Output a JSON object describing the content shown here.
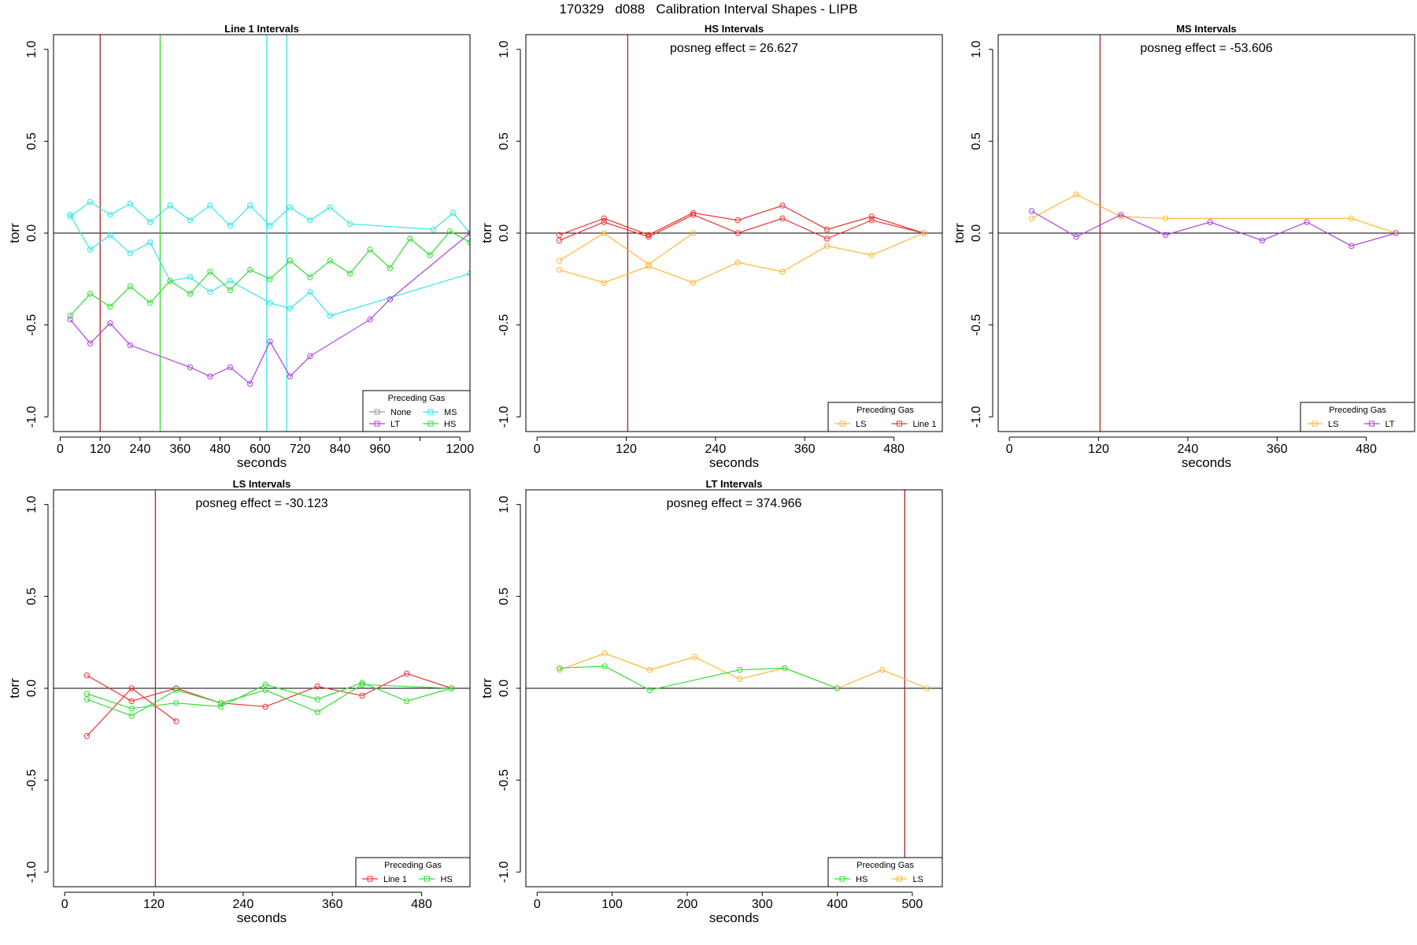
{
  "page_title": "170329   d088   Calibration Interval Shapes - LIPB",
  "chart_data": [
    {
      "id": "line1",
      "type": "line",
      "title": "Line 1 Intervals",
      "xlabel": "seconds",
      "ylabel": "torr",
      "xlim": [
        -20,
        1230
      ],
      "ylim": [
        -1.08,
        1.08
      ],
      "xticks": [
        0,
        120,
        240,
        360,
        480,
        600,
        720,
        840,
        960,
        1080,
        1200
      ],
      "xtick_labels": [
        "0",
        "120",
        "240",
        "360",
        "480",
        "600",
        "720",
        "840",
        "960",
        "",
        "1200"
      ],
      "yticks": [
        -1.0,
        -0.5,
        0.0,
        0.5,
        1.0
      ],
      "ytick_labels": [
        "-1.0",
        "-0.5",
        "0.0",
        "0.5",
        "1.0"
      ],
      "annotation": "",
      "vlines": [
        {
          "x": 120,
          "color": "#b22222"
        },
        {
          "x": 300,
          "color": "#33dd33"
        },
        {
          "x": 620,
          "color": "#33e6e6"
        },
        {
          "x": 680,
          "color": "#33e6e6"
        }
      ],
      "legend": {
        "title": "Preceding Gas",
        "position": "bottom-right",
        "columns": 2,
        "entries": [
          {
            "label": "None",
            "color": "#999999"
          },
          {
            "label": "MS",
            "color": "#33e6e6"
          },
          {
            "label": "LT",
            "color": "#b040e0"
          },
          {
            "label": "HS",
            "color": "#33dd33"
          }
        ]
      },
      "series": [
        {
          "color": "#33e6e6",
          "x": [
            30,
            90,
            150,
            210,
            270,
            330,
            390,
            450,
            510,
            570,
            630,
            690,
            750,
            810,
            870,
            1120,
            1180,
            1230
          ],
          "y": [
            0.09,
            0.17,
            0.1,
            0.16,
            0.06,
            0.15,
            0.07,
            0.15,
            0.04,
            0.15,
            0.04,
            0.14,
            0.07,
            0.14,
            0.05,
            0.02,
            0.11,
            0.0
          ]
        },
        {
          "color": "#33e6e6",
          "x": [
            30,
            90,
            150,
            210,
            270,
            330,
            390,
            450,
            510,
            630,
            690,
            750,
            810,
            1230
          ],
          "y": [
            0.1,
            -0.09,
            -0.01,
            -0.11,
            -0.05,
            -0.26,
            -0.24,
            -0.32,
            -0.26,
            -0.38,
            -0.41,
            -0.32,
            -0.45,
            -0.22
          ]
        },
        {
          "color": "#33dd33",
          "x": [
            30,
            90,
            150,
            210,
            270,
            330,
            390,
            450,
            510,
            570,
            630,
            690,
            750,
            810,
            870,
            930,
            990,
            1050,
            1110,
            1170,
            1230
          ],
          "y": [
            -0.45,
            -0.33,
            -0.4,
            -0.29,
            -0.38,
            -0.26,
            -0.33,
            -0.21,
            -0.31,
            -0.2,
            -0.25,
            -0.15,
            -0.24,
            -0.15,
            -0.22,
            -0.09,
            -0.19,
            -0.03,
            -0.12,
            0.01,
            -0.05
          ]
        },
        {
          "color": "#b040e0",
          "x": [
            30,
            90,
            150,
            210,
            390,
            450,
            510,
            570,
            630,
            690,
            750,
            930,
            990,
            1230
          ],
          "y": [
            -0.47,
            -0.6,
            -0.49,
            -0.61,
            -0.73,
            -0.78,
            -0.73,
            -0.82,
            -0.59,
            -0.78,
            -0.67,
            -0.47,
            -0.36,
            0.0
          ]
        }
      ]
    },
    {
      "id": "hs",
      "type": "line",
      "title": "HS Intervals",
      "xlabel": "seconds",
      "ylabel": "torr",
      "xlim": [
        -15,
        545
      ],
      "ylim": [
        -1.08,
        1.08
      ],
      "xticks": [
        0,
        120,
        240,
        360,
        480
      ],
      "xtick_labels": [
        "0",
        "120",
        "240",
        "360",
        "480"
      ],
      "yticks": [
        -1.0,
        -0.5,
        0.0,
        0.5,
        1.0
      ],
      "ytick_labels": [
        "-1.0",
        "-0.5",
        "0.0",
        "0.5",
        "1.0"
      ],
      "annotation": "posneg effect = 26.627",
      "vlines": [
        {
          "x": 122,
          "color": "#b22222"
        }
      ],
      "legend": {
        "title": "Preceding Gas",
        "position": "bottom-right",
        "columns": 2,
        "entries": [
          {
            "label": "LS",
            "color": "#ffb733"
          },
          {
            "label": "Line 1",
            "color": "#ee3333"
          }
        ]
      },
      "series": [
        {
          "color": "#ee3333",
          "x": [
            30,
            90,
            150,
            210,
            270,
            330,
            390,
            450,
            520
          ],
          "y": [
            -0.01,
            0.08,
            -0.01,
            0.11,
            0.07,
            0.15,
            0.02,
            0.09,
            0.0
          ]
        },
        {
          "color": "#ee3333",
          "x": [
            30,
            90,
            150,
            210,
            270,
            330,
            390,
            450,
            520
          ],
          "y": [
            -0.04,
            0.06,
            -0.02,
            0.1,
            0.0,
            0.08,
            -0.03,
            0.07,
            0.0
          ]
        },
        {
          "color": "#ffb733",
          "x": [
            30,
            90,
            150,
            210
          ],
          "y": [
            -0.15,
            0.0,
            -0.17,
            0.0
          ]
        },
        {
          "color": "#ffb733",
          "x": [
            30,
            90,
            150,
            210,
            270,
            330,
            390,
            450,
            520
          ],
          "y": [
            -0.2,
            -0.27,
            -0.18,
            -0.27,
            -0.16,
            -0.21,
            -0.07,
            -0.12,
            0.0
          ]
        }
      ]
    },
    {
      "id": "ms",
      "type": "line",
      "title": "MS Intervals",
      "xlabel": "seconds",
      "ylabel": "torr",
      "xlim": [
        -15,
        545
      ],
      "ylim": [
        -1.08,
        1.08
      ],
      "xticks": [
        0,
        120,
        240,
        360,
        480
      ],
      "xtick_labels": [
        "0",
        "120",
        "240",
        "360",
        "480"
      ],
      "yticks": [
        -1.0,
        -0.5,
        0.0,
        0.5,
        1.0
      ],
      "ytick_labels": [
        "-1.0",
        "-0.5",
        "0.0",
        "0.5",
        "1.0"
      ],
      "annotation": "posneg effect = -53.606",
      "vlines": [
        {
          "x": 122,
          "color": "#b22222"
        }
      ],
      "legend": {
        "title": "Preceding Gas",
        "position": "bottom-right",
        "columns": 2,
        "entries": [
          {
            "label": "LS",
            "color": "#ffb733"
          },
          {
            "label": "LT",
            "color": "#b040e0"
          }
        ]
      },
      "series": [
        {
          "color": "#ffb733",
          "x": [
            30,
            90,
            150,
            210,
            460,
            520
          ],
          "y": [
            0.08,
            0.21,
            0.09,
            0.08,
            0.08,
            0.0
          ]
        },
        {
          "color": "#b040e0",
          "x": [
            30,
            90,
            150,
            210,
            270,
            340,
            400,
            460,
            520
          ],
          "y": [
            0.12,
            -0.02,
            0.1,
            -0.01,
            0.06,
            -0.04,
            0.06,
            -0.07,
            0.0
          ]
        }
      ]
    },
    {
      "id": "ls",
      "type": "line",
      "title": "LS Intervals",
      "xlabel": "seconds",
      "ylabel": "torr",
      "xlim": [
        -15,
        545
      ],
      "ylim": [
        -1.08,
        1.08
      ],
      "xticks": [
        0,
        120,
        240,
        360,
        480
      ],
      "xtick_labels": [
        "0",
        "120",
        "240",
        "360",
        "480"
      ],
      "yticks": [
        -1.0,
        -0.5,
        0.0,
        0.5,
        1.0
      ],
      "ytick_labels": [
        "-1.0",
        "-0.5",
        "0.0",
        "0.5",
        "1.0"
      ],
      "annotation": "posneg effect = -30.123",
      "vlines": [
        {
          "x": 122,
          "color": "#b22222"
        }
      ],
      "legend": {
        "title": "Preceding Gas",
        "position": "bottom-right",
        "columns": 2,
        "entries": [
          {
            "label": "Line 1",
            "color": "#ee3333"
          },
          {
            "label": "HS",
            "color": "#33dd33"
          }
        ]
      },
      "series": [
        {
          "color": "#ee3333",
          "x": [
            30,
            90,
            150,
            210,
            270,
            340,
            400,
            460,
            520
          ],
          "y": [
            0.07,
            -0.07,
            0.0,
            -0.08,
            -0.1,
            0.01,
            -0.04,
            0.08,
            0.0
          ]
        },
        {
          "color": "#ee3333",
          "x": [
            30,
            90,
            150
          ],
          "y": [
            -0.26,
            0.0,
            -0.18
          ]
        },
        {
          "color": "#33dd33",
          "x": [
            30,
            90,
            150,
            210,
            270,
            340,
            400,
            460,
            520
          ],
          "y": [
            -0.03,
            -0.11,
            -0.08,
            -0.1,
            0.02,
            -0.06,
            0.03,
            -0.07,
            0.0
          ]
        },
        {
          "color": "#33dd33",
          "x": [
            30,
            90,
            150,
            210,
            270,
            340,
            400,
            520
          ],
          "y": [
            -0.06,
            -0.15,
            -0.01,
            -0.08,
            -0.01,
            -0.13,
            0.02,
            0.0
          ]
        }
      ]
    },
    {
      "id": "lt",
      "type": "line",
      "title": "LT Intervals",
      "xlabel": "seconds",
      "ylabel": "torr",
      "xlim": [
        -15,
        540
      ],
      "ylim": [
        -1.08,
        1.08
      ],
      "xticks": [
        0,
        100,
        200,
        300,
        400,
        500
      ],
      "xtick_labels": [
        "0",
        "100",
        "200",
        "300",
        "400",
        "500"
      ],
      "yticks": [
        -1.0,
        -0.5,
        0.0,
        0.5,
        1.0
      ],
      "ytick_labels": [
        "-1.0",
        "-0.5",
        "0.0",
        "0.5",
        "1.0"
      ],
      "annotation": "posneg effect = 374.966",
      "vlines": [
        {
          "x": 490,
          "color": "#b22222"
        }
      ],
      "legend": {
        "title": "Preceding Gas",
        "position": "bottom-right",
        "columns": 2,
        "entries": [
          {
            "label": "HS",
            "color": "#33dd33"
          },
          {
            "label": "LS",
            "color": "#ffb733"
          }
        ]
      },
      "series": [
        {
          "color": "#ffb733",
          "x": [
            30,
            90,
            150,
            210,
            270,
            330,
            400,
            460,
            520
          ],
          "y": [
            0.1,
            0.19,
            0.1,
            0.17,
            0.05,
            0.11,
            0.0,
            0.1,
            0.0
          ]
        },
        {
          "color": "#33dd33",
          "x": [
            30,
            90,
            150,
            270,
            330,
            400
          ],
          "y": [
            0.11,
            0.12,
            -0.01,
            0.1,
            0.11,
            0.0
          ]
        }
      ]
    }
  ]
}
